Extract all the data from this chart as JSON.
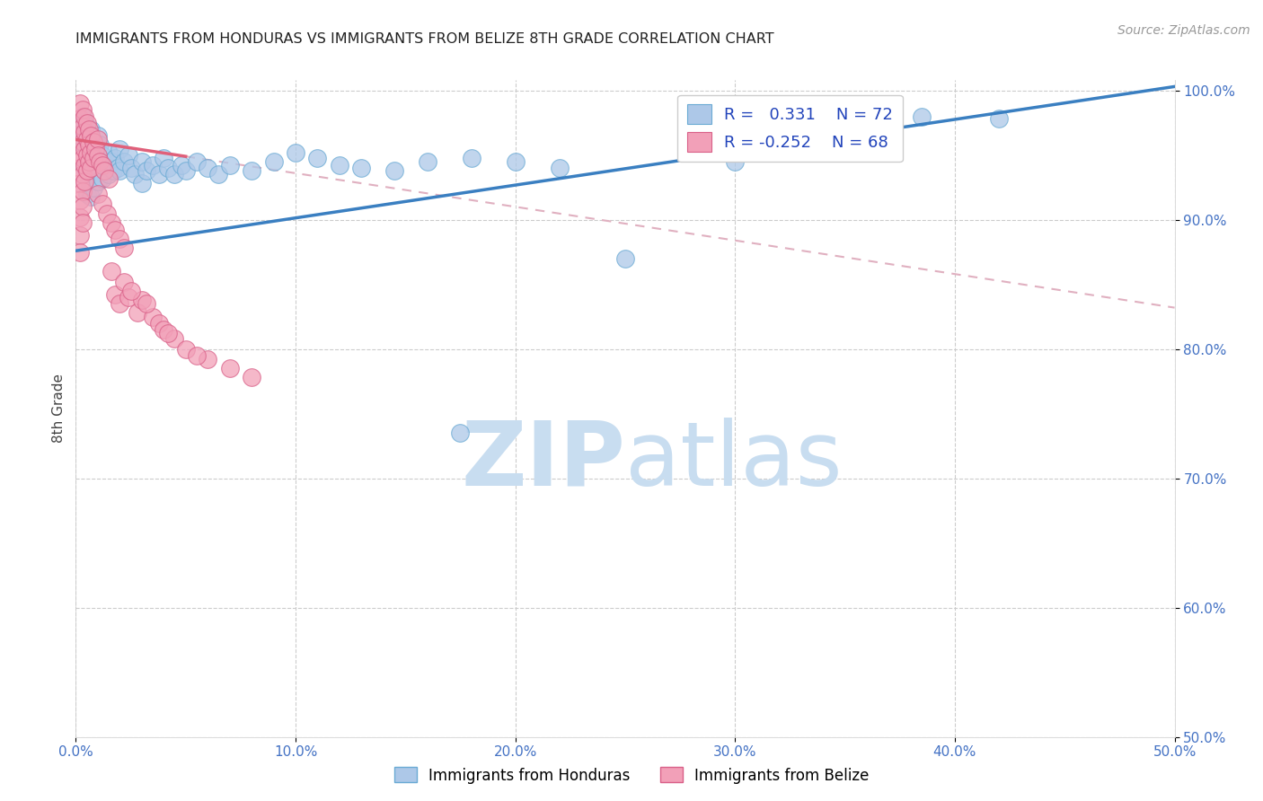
{
  "title": "IMMIGRANTS FROM HONDURAS VS IMMIGRANTS FROM BELIZE 8TH GRADE CORRELATION CHART",
  "source": "Source: ZipAtlas.com",
  "ylabel": "8th Grade",
  "xlim": [
    0.0,
    0.5
  ],
  "ylim": [
    0.5,
    1.008
  ],
  "xtick_vals": [
    0.0,
    0.1,
    0.2,
    0.3,
    0.4,
    0.5
  ],
  "ytick_vals": [
    0.5,
    0.6,
    0.7,
    0.8,
    0.9,
    1.0
  ],
  "ytick_labels": [
    "50.0%",
    "60.0%",
    "70.0%",
    "80.0%",
    "90.0%",
    "100.0%"
  ],
  "xtick_labels": [
    "0.0%",
    "10.0%",
    "20.0%",
    "30.0%",
    "40.0%",
    "50.0%"
  ],
  "color_honduras": "#adc8e8",
  "color_belize": "#f2a0b8",
  "edge_honduras": "#6aaad4",
  "edge_belize": "#d96088",
  "trendline_honduras_color": "#3a7fc1",
  "trendline_belize_solid_color": "#e0607a",
  "trendline_belize_dashed_color": "#e0b0c0",
  "watermark_zip_color": "#c8ddf0",
  "watermark_atlas_color": "#c8ddf0",
  "background_color": "#ffffff",
  "trendline_honduras_x0": 0.0,
  "trendline_honduras_y0": 0.876,
  "trendline_honduras_x1": 0.5,
  "trendline_honduras_y1": 1.003,
  "trendline_belize_solid_x0": 0.0,
  "trendline_belize_solid_y0": 0.962,
  "trendline_belize_solid_x1": 0.05,
  "trendline_belize_solid_y1": 0.949,
  "trendline_belize_dashed_x0": 0.05,
  "trendline_belize_dashed_y0": 0.949,
  "trendline_belize_dashed_x1": 0.5,
  "trendline_belize_dashed_y1": 0.832,
  "honduras_scatter": [
    [
      0.002,
      0.97
    ],
    [
      0.002,
      0.96
    ],
    [
      0.003,
      0.98
    ],
    [
      0.003,
      0.965
    ],
    [
      0.004,
      0.975
    ],
    [
      0.004,
      0.958
    ],
    [
      0.004,
      0.94
    ],
    [
      0.005,
      0.972
    ],
    [
      0.005,
      0.955
    ],
    [
      0.005,
      0.938
    ],
    [
      0.005,
      0.92
    ],
    [
      0.006,
      0.965
    ],
    [
      0.006,
      0.948
    ],
    [
      0.006,
      0.93
    ],
    [
      0.007,
      0.97
    ],
    [
      0.007,
      0.952
    ],
    [
      0.007,
      0.935
    ],
    [
      0.007,
      0.918
    ],
    [
      0.008,
      0.96
    ],
    [
      0.008,
      0.942
    ],
    [
      0.008,
      0.925
    ],
    [
      0.009,
      0.955
    ],
    [
      0.009,
      0.938
    ],
    [
      0.01,
      0.965
    ],
    [
      0.01,
      0.948
    ],
    [
      0.01,
      0.93
    ],
    [
      0.011,
      0.958
    ],
    [
      0.012,
      0.95
    ],
    [
      0.012,
      0.932
    ],
    [
      0.013,
      0.945
    ],
    [
      0.014,
      0.94
    ],
    [
      0.015,
      0.952
    ],
    [
      0.015,
      0.935
    ],
    [
      0.016,
      0.945
    ],
    [
      0.017,
      0.938
    ],
    [
      0.018,
      0.948
    ],
    [
      0.019,
      0.94
    ],
    [
      0.02,
      0.955
    ],
    [
      0.02,
      0.938
    ],
    [
      0.022,
      0.945
    ],
    [
      0.024,
      0.95
    ],
    [
      0.025,
      0.94
    ],
    [
      0.027,
      0.935
    ],
    [
      0.03,
      0.945
    ],
    [
      0.03,
      0.928
    ],
    [
      0.032,
      0.938
    ],
    [
      0.035,
      0.942
    ],
    [
      0.038,
      0.935
    ],
    [
      0.04,
      0.948
    ],
    [
      0.042,
      0.94
    ],
    [
      0.045,
      0.935
    ],
    [
      0.048,
      0.942
    ],
    [
      0.05,
      0.938
    ],
    [
      0.055,
      0.945
    ],
    [
      0.06,
      0.94
    ],
    [
      0.065,
      0.935
    ],
    [
      0.07,
      0.942
    ],
    [
      0.08,
      0.938
    ],
    [
      0.09,
      0.945
    ],
    [
      0.1,
      0.952
    ],
    [
      0.11,
      0.948
    ],
    [
      0.12,
      0.942
    ],
    [
      0.13,
      0.94
    ],
    [
      0.145,
      0.938
    ],
    [
      0.16,
      0.945
    ],
    [
      0.18,
      0.948
    ],
    [
      0.2,
      0.945
    ],
    [
      0.22,
      0.94
    ],
    [
      0.25,
      0.87
    ],
    [
      0.28,
      0.962
    ],
    [
      0.3,
      0.945
    ],
    [
      0.32,
      0.968
    ],
    [
      0.385,
      0.98
    ],
    [
      0.42,
      0.978
    ],
    [
      0.175,
      0.735
    ]
  ],
  "belize_scatter": [
    [
      0.002,
      0.99
    ],
    [
      0.002,
      0.978
    ],
    [
      0.002,
      0.965
    ],
    [
      0.002,
      0.952
    ],
    [
      0.002,
      0.94
    ],
    [
      0.002,
      0.928
    ],
    [
      0.002,
      0.915
    ],
    [
      0.002,
      0.902
    ],
    [
      0.002,
      0.888
    ],
    [
      0.002,
      0.875
    ],
    [
      0.003,
      0.985
    ],
    [
      0.003,
      0.972
    ],
    [
      0.003,
      0.96
    ],
    [
      0.003,
      0.948
    ],
    [
      0.003,
      0.935
    ],
    [
      0.003,
      0.922
    ],
    [
      0.003,
      0.91
    ],
    [
      0.003,
      0.898
    ],
    [
      0.004,
      0.98
    ],
    [
      0.004,
      0.968
    ],
    [
      0.004,
      0.955
    ],
    [
      0.004,
      0.942
    ],
    [
      0.004,
      0.93
    ],
    [
      0.005,
      0.975
    ],
    [
      0.005,
      0.962
    ],
    [
      0.005,
      0.95
    ],
    [
      0.005,
      0.938
    ],
    [
      0.006,
      0.97
    ],
    [
      0.006,
      0.958
    ],
    [
      0.006,
      0.945
    ],
    [
      0.007,
      0.965
    ],
    [
      0.007,
      0.952
    ],
    [
      0.007,
      0.94
    ],
    [
      0.008,
      0.96
    ],
    [
      0.008,
      0.948
    ],
    [
      0.009,
      0.955
    ],
    [
      0.01,
      0.962
    ],
    [
      0.01,
      0.95
    ],
    [
      0.011,
      0.945
    ],
    [
      0.012,
      0.942
    ],
    [
      0.013,
      0.938
    ],
    [
      0.015,
      0.932
    ],
    [
      0.016,
      0.86
    ],
    [
      0.018,
      0.842
    ],
    [
      0.02,
      0.835
    ],
    [
      0.022,
      0.852
    ],
    [
      0.024,
      0.84
    ],
    [
      0.028,
      0.828
    ],
    [
      0.03,
      0.838
    ],
    [
      0.01,
      0.92
    ],
    [
      0.012,
      0.912
    ],
    [
      0.014,
      0.905
    ],
    [
      0.016,
      0.898
    ],
    [
      0.018,
      0.892
    ],
    [
      0.02,
      0.885
    ],
    [
      0.022,
      0.878
    ],
    [
      0.035,
      0.825
    ],
    [
      0.038,
      0.82
    ],
    [
      0.04,
      0.815
    ],
    [
      0.045,
      0.808
    ],
    [
      0.05,
      0.8
    ],
    [
      0.06,
      0.792
    ],
    [
      0.07,
      0.785
    ],
    [
      0.08,
      0.778
    ],
    [
      0.025,
      0.845
    ],
    [
      0.055,
      0.795
    ],
    [
      0.032,
      0.835
    ],
    [
      0.042,
      0.812
    ]
  ]
}
